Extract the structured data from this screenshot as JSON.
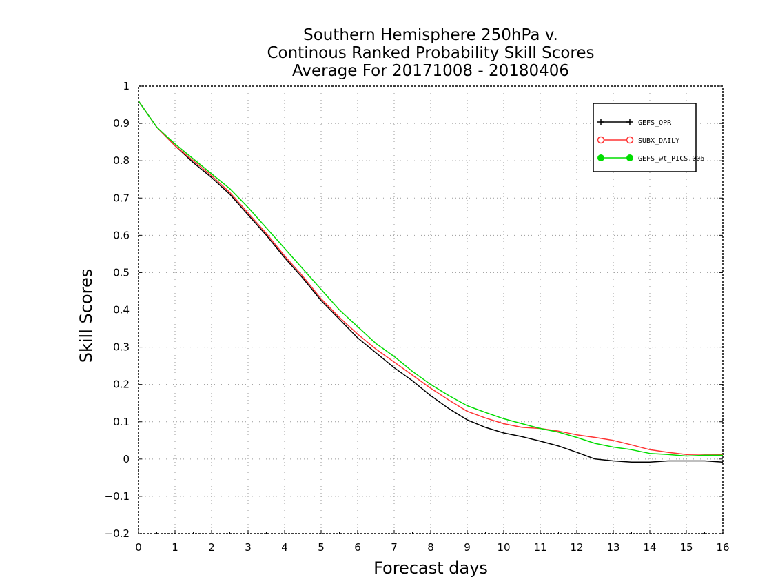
{
  "chart_data": {
    "type": "line",
    "title_lines": [
      "Southern Hemisphere 250hPa v.",
      "Continous Ranked Probability Skill Scores",
      "Average For 20171008 - 20180406"
    ],
    "xlabel": "Forecast days",
    "ylabel": "Skill Scores",
    "xlim": [
      0,
      16
    ],
    "ylim": [
      -0.2,
      1
    ],
    "x_ticks": [
      0,
      1,
      2,
      3,
      4,
      5,
      6,
      7,
      8,
      9,
      10,
      11,
      12,
      13,
      14,
      15,
      16
    ],
    "y_ticks": [
      -0.2,
      -0.1,
      0,
      0.1,
      0.2,
      0.3,
      0.4,
      0.5,
      0.6,
      0.7,
      0.8,
      0.9,
      1
    ],
    "x_tick_labels": [
      "0",
      "1",
      "2",
      "3",
      "4",
      "5",
      "6",
      "7",
      "8",
      "9",
      "10",
      "11",
      "12",
      "13",
      "14",
      "15",
      "16"
    ],
    "y_tick_labels": [
      "−0.2",
      "−0.1",
      "0",
      "0.1",
      "0.2",
      "0.3",
      "0.4",
      "0.5",
      "0.6",
      "0.7",
      "0.8",
      "0.9",
      "1"
    ],
    "grid": true,
    "legend_position": "top-right",
    "x": [
      0,
      0.5,
      1,
      1.5,
      2,
      2.5,
      3,
      3.5,
      4,
      4.5,
      5,
      5.5,
      6,
      6.5,
      7,
      7.5,
      8,
      8.5,
      9,
      9.5,
      10,
      10.5,
      11,
      11.5,
      12,
      12.5,
      13,
      13.5,
      14,
      14.5,
      15,
      15.5,
      16
    ],
    "series": [
      {
        "name": "GEFS_OPR",
        "color": "#000000",
        "marker": "plus",
        "values": [
          0.96,
          0.89,
          0.84,
          0.795,
          0.755,
          0.71,
          0.655,
          0.6,
          0.54,
          0.485,
          0.425,
          0.375,
          0.325,
          0.285,
          0.245,
          0.21,
          0.17,
          0.135,
          0.105,
          0.085,
          0.07,
          0.06,
          0.048,
          0.035,
          0.018,
          0.0,
          -0.005,
          -0.008,
          -0.008,
          -0.005,
          -0.005,
          -0.005,
          -0.008
        ]
      },
      {
        "name": "SUBX_DAILY",
        "color": "#ff3333",
        "marker": "open-circle",
        "values": [
          0.96,
          0.89,
          0.84,
          0.8,
          0.76,
          0.715,
          0.66,
          0.605,
          0.545,
          0.49,
          0.43,
          0.38,
          0.335,
          0.295,
          0.26,
          0.225,
          0.19,
          0.158,
          0.128,
          0.11,
          0.095,
          0.085,
          0.082,
          0.075,
          0.065,
          0.058,
          0.05,
          0.038,
          0.025,
          0.018,
          0.012,
          0.013,
          0.012
        ]
      },
      {
        "name": "GEFS_wt_PICS.006",
        "color": "#00dd00",
        "marker": "filled-circle",
        "values": [
          0.96,
          0.89,
          0.845,
          0.805,
          0.765,
          0.725,
          0.675,
          0.62,
          0.565,
          0.51,
          0.455,
          0.4,
          0.355,
          0.31,
          0.275,
          0.235,
          0.2,
          0.17,
          0.143,
          0.125,
          0.108,
          0.095,
          0.082,
          0.072,
          0.058,
          0.042,
          0.032,
          0.025,
          0.015,
          0.012,
          0.008,
          0.01,
          0.01
        ]
      }
    ]
  }
}
